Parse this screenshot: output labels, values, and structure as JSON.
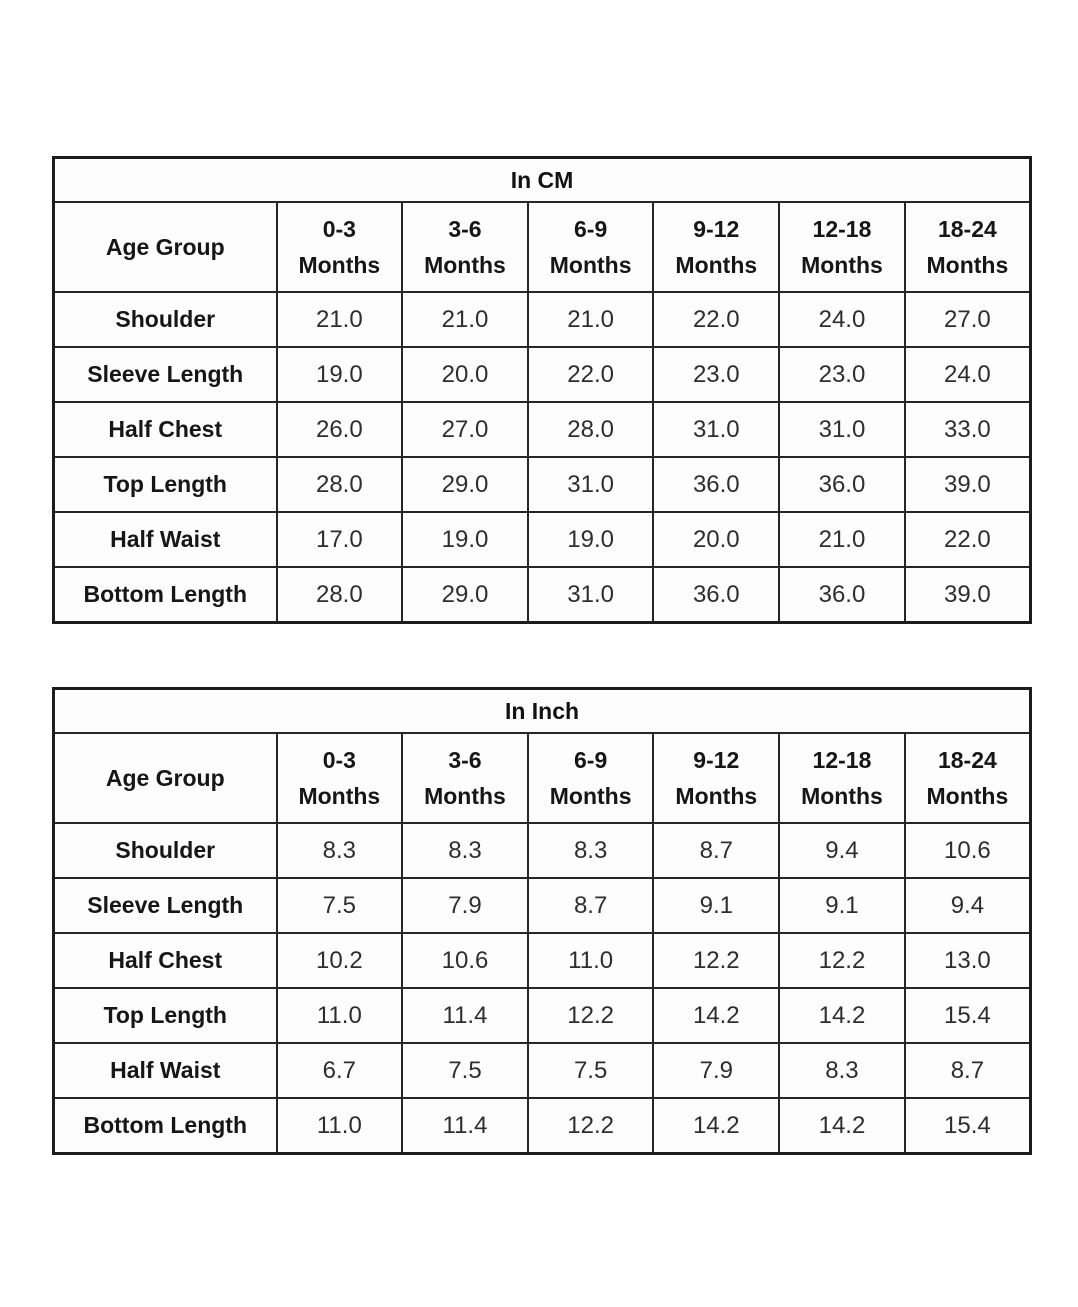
{
  "colors": {
    "background": "#ffffff",
    "border": "#1c1c1c",
    "header_text": "#161616",
    "value_text": "#2e2e2e"
  },
  "tables": [
    {
      "title": "In CM",
      "corner_label": "Age Group",
      "column_headers": [
        {
          "line1": "0-3",
          "line2": "Months"
        },
        {
          "line1": "3-6",
          "line2": "Months"
        },
        {
          "line1": "6-9",
          "line2": "Months"
        },
        {
          "line1": "9-12",
          "line2": "Months"
        },
        {
          "line1": "12-18",
          "line2": "Months"
        },
        {
          "line1": "18-24",
          "line2": "Months"
        }
      ],
      "rows": [
        {
          "label": "Shoulder",
          "values": [
            "21.0",
            "21.0",
            "21.0",
            "22.0",
            "24.0",
            "27.0"
          ]
        },
        {
          "label": "Sleeve Length",
          "values": [
            "19.0",
            "20.0",
            "22.0",
            "23.0",
            "23.0",
            "24.0"
          ]
        },
        {
          "label": "Half Chest",
          "values": [
            "26.0",
            "27.0",
            "28.0",
            "31.0",
            "31.0",
            "33.0"
          ]
        },
        {
          "label": "Top Length",
          "values": [
            "28.0",
            "29.0",
            "31.0",
            "36.0",
            "36.0",
            "39.0"
          ]
        },
        {
          "label": "Half Waist",
          "values": [
            "17.0",
            "19.0",
            "19.0",
            "20.0",
            "21.0",
            "22.0"
          ]
        },
        {
          "label": "Bottom Length",
          "values": [
            "28.0",
            "29.0",
            "31.0",
            "36.0",
            "36.0",
            "39.0"
          ]
        }
      ]
    },
    {
      "title": "In Inch",
      "corner_label": "Age Group",
      "column_headers": [
        {
          "line1": "0-3",
          "line2": "Months"
        },
        {
          "line1": "3-6",
          "line2": "Months"
        },
        {
          "line1": "6-9",
          "line2": "Months"
        },
        {
          "line1": "9-12",
          "line2": "Months"
        },
        {
          "line1": "12-18",
          "line2": "Months"
        },
        {
          "line1": "18-24",
          "line2": "Months"
        }
      ],
      "rows": [
        {
          "label": "Shoulder",
          "values": [
            "8.3",
            "8.3",
            "8.3",
            "8.7",
            "9.4",
            "10.6"
          ]
        },
        {
          "label": "Sleeve Length",
          "values": [
            "7.5",
            "7.9",
            "8.7",
            "9.1",
            "9.1",
            "9.4"
          ]
        },
        {
          "label": "Half Chest",
          "values": [
            "10.2",
            "10.6",
            "11.0",
            "12.2",
            "12.2",
            "13.0"
          ]
        },
        {
          "label": "Top Length",
          "values": [
            "11.0",
            "11.4",
            "12.2",
            "14.2",
            "14.2",
            "15.4"
          ]
        },
        {
          "label": "Half Waist",
          "values": [
            "6.7",
            "7.5",
            "7.5",
            "7.9",
            "8.3",
            "8.7"
          ]
        },
        {
          "label": "Bottom Length",
          "values": [
            "11.0",
            "11.4",
            "12.2",
            "14.2",
            "14.2",
            "15.4"
          ]
        }
      ]
    }
  ]
}
